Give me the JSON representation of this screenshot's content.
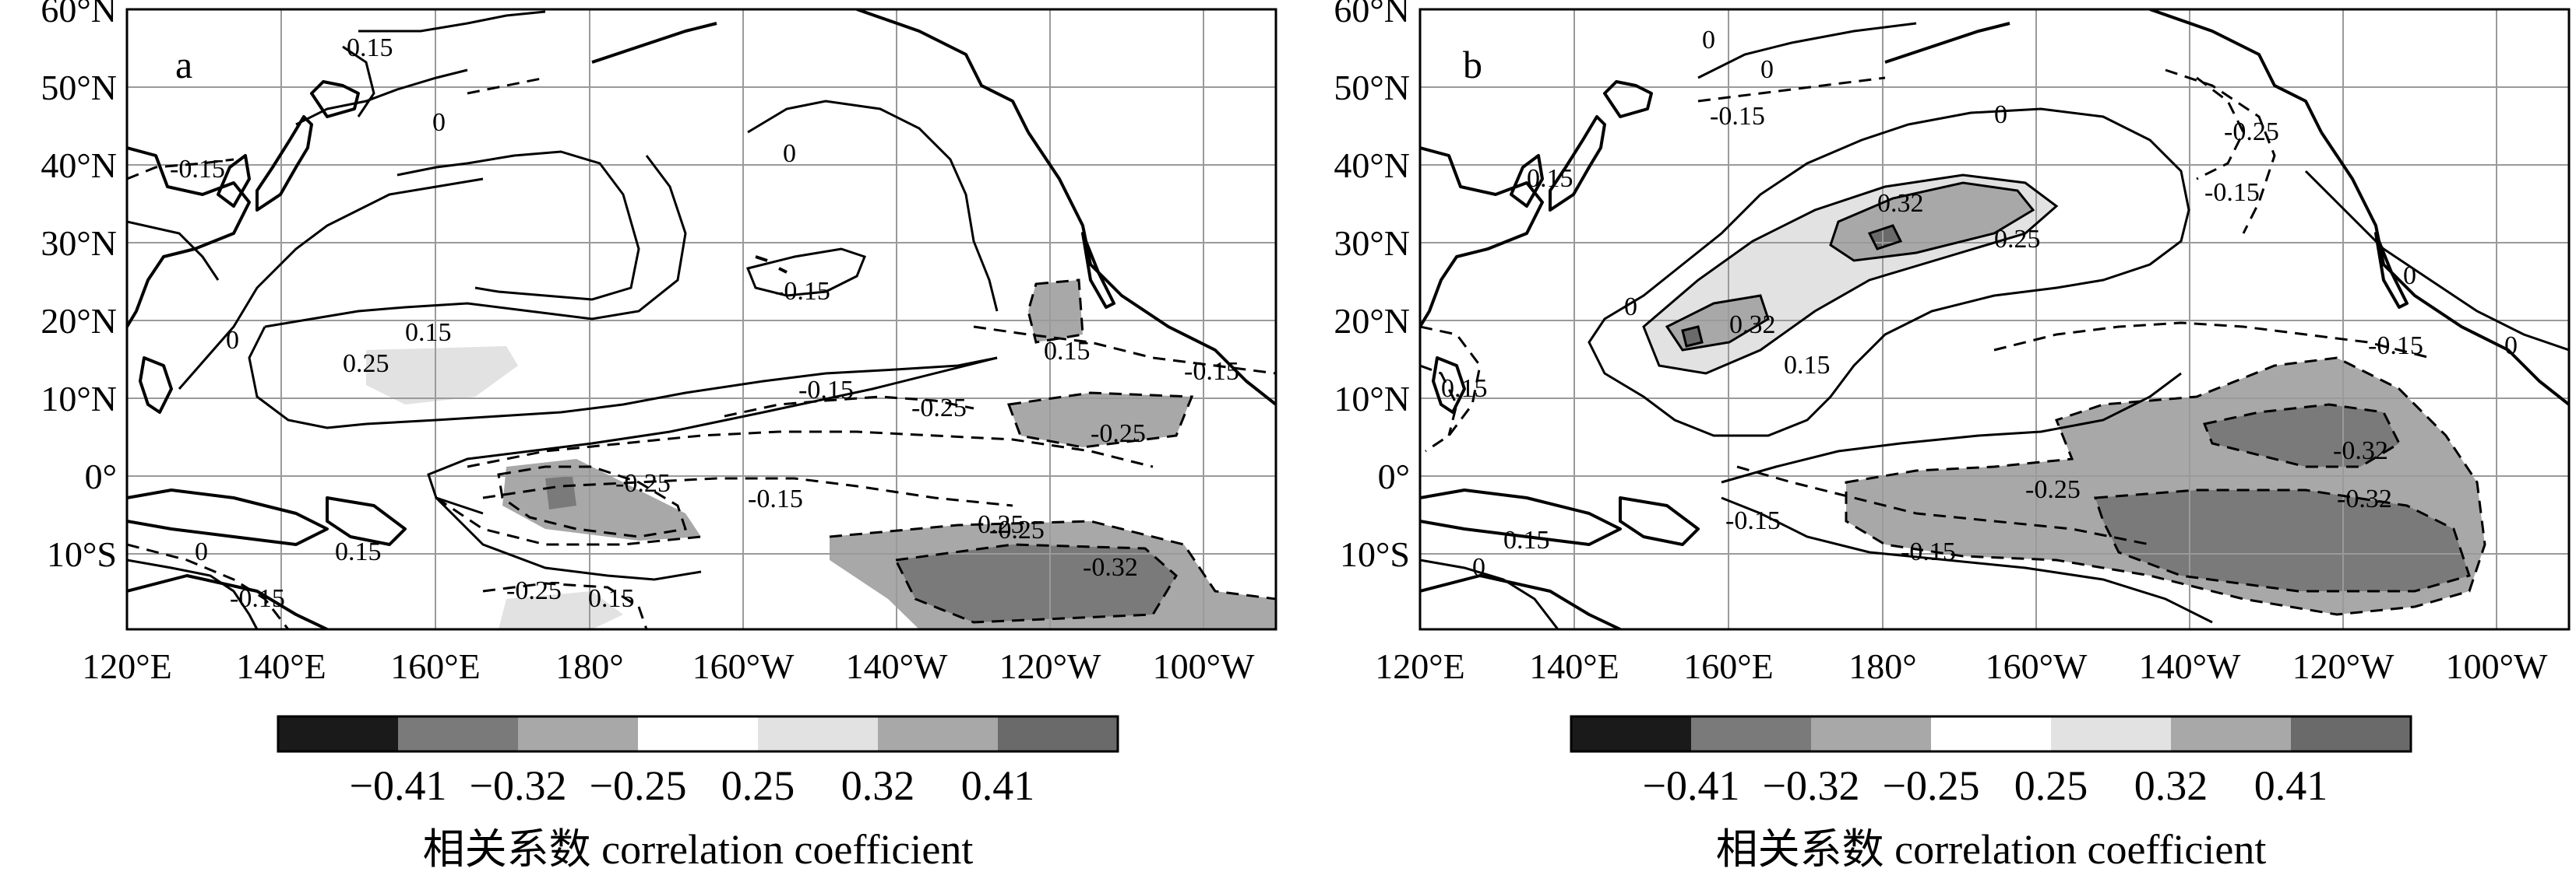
{
  "colors": {
    "neg_041": "#1a1a1a",
    "neg_032": "#7a7a7a",
    "neg_025": "#a8a8a8",
    "neutral": "#ffffff",
    "pos_025": "#e2e2e2",
    "pos_032": "#a8a8a8",
    "pos_041": "#6a6a6a"
  },
  "axes": {
    "lon_ticks": [
      "120°E",
      "140°E",
      "160°E",
      "180°",
      "160°W",
      "140°W",
      "120°W",
      "100°W"
    ],
    "lat_ticks": [
      "60°N",
      "50°N",
      "40°N",
      "30°N",
      "20°N",
      "10°N",
      "0°",
      "10°S"
    ]
  },
  "colorbar": {
    "levels": [
      "−0.41",
      "−0.32",
      "−0.25",
      "0.25",
      "0.32",
      "0.41"
    ],
    "title": "相关系数  correlation coefficient"
  },
  "panels": [
    {
      "label": "a",
      "contour_labels": [
        "0.15",
        "0",
        "-0.15",
        "0.15",
        "0.25",
        "0",
        "0",
        "-0.15",
        "-0.15",
        "0.15",
        "-0.25",
        "-0.15",
        "-0.25",
        "-0.25",
        "-0.15",
        "-0.25",
        "-0.32",
        "0",
        "-0.15",
        "0.15",
        "-0.25",
        "0.15",
        "0.25"
      ]
    },
    {
      "label": "b",
      "contour_labels": [
        "0",
        "0",
        "-0.15",
        "0",
        "-0.25",
        "-0.15",
        "0.15",
        "0.32",
        "0.25",
        "0.32",
        "0.15",
        "0",
        "0",
        "0.15",
        "-0.15",
        "-0.32",
        "-0.32",
        "-0.25",
        "-0.15",
        "-0.15",
        "0.15",
        "0",
        "0"
      ]
    }
  ]
}
